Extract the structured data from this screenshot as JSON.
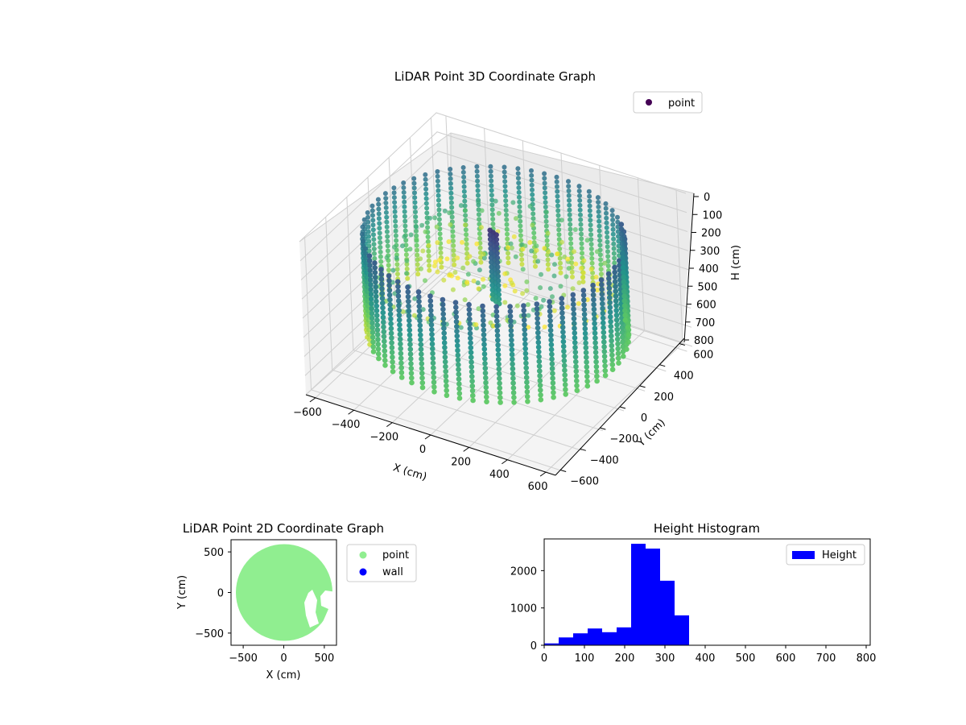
{
  "chart_data": [
    {
      "type": "scatter",
      "title": "LiDAR Point 3D Coordinate Graph",
      "xlabel": "X (cm)",
      "ylabel": "Y (cm)",
      "zlabel": "H (cm)",
      "x_ticks": [
        -600,
        -400,
        -200,
        0,
        200,
        400,
        600
      ],
      "y_ticks": [
        -600,
        -400,
        -200,
        0,
        200,
        400,
        600
      ],
      "z_ticks": [
        0,
        100,
        200,
        300,
        400,
        500,
        600,
        700,
        800
      ],
      "z_inverted": true,
      "legend": {
        "placement": "upper-right",
        "entries": [
          {
            "name": "point",
            "color": "#440154"
          }
        ]
      },
      "colormap": [
        "#440154",
        "#3b528b",
        "#21918c",
        "#5ec962",
        "#fde725"
      ],
      "description_values": {
        "wall_radius_cm": 600,
        "wall_height_range_cm": [
          100,
          600
        ]
      }
    },
    {
      "type": "scatter",
      "title": "LiDAR Point 2D Coordinate Graph",
      "xlabel": "X (cm)",
      "ylabel": "Y (cm)",
      "xlim": [
        -650,
        650
      ],
      "ylim": [
        -650,
        650
      ],
      "x_ticks": [
        -500,
        0,
        500
      ],
      "y_ticks": [
        -500,
        0,
        500
      ],
      "legend": {
        "placement": "outside-right",
        "entries": [
          {
            "name": "point",
            "color": "#90ee90"
          },
          {
            "name": "wall",
            "color": "#0000ff"
          }
        ]
      },
      "radius": 600
    },
    {
      "type": "bar",
      "title": "Height Histogram",
      "xlim": [
        0,
        810
      ],
      "ylim": [
        0,
        2850
      ],
      "x_ticks": [
        0,
        100,
        200,
        300,
        400,
        500,
        600,
        700,
        800
      ],
      "y_ticks": [
        0,
        1000,
        2000
      ],
      "legend": {
        "placement": "upper-right",
        "entries": [
          {
            "name": "Height",
            "color": "#0000ff"
          }
        ]
      },
      "bin_edges": [
        0,
        36,
        72,
        108,
        144,
        180,
        216,
        252,
        288,
        324,
        360
      ],
      "values": [
        50,
        210,
        320,
        450,
        350,
        480,
        2720,
        2590,
        1730,
        800
      ]
    }
  ]
}
